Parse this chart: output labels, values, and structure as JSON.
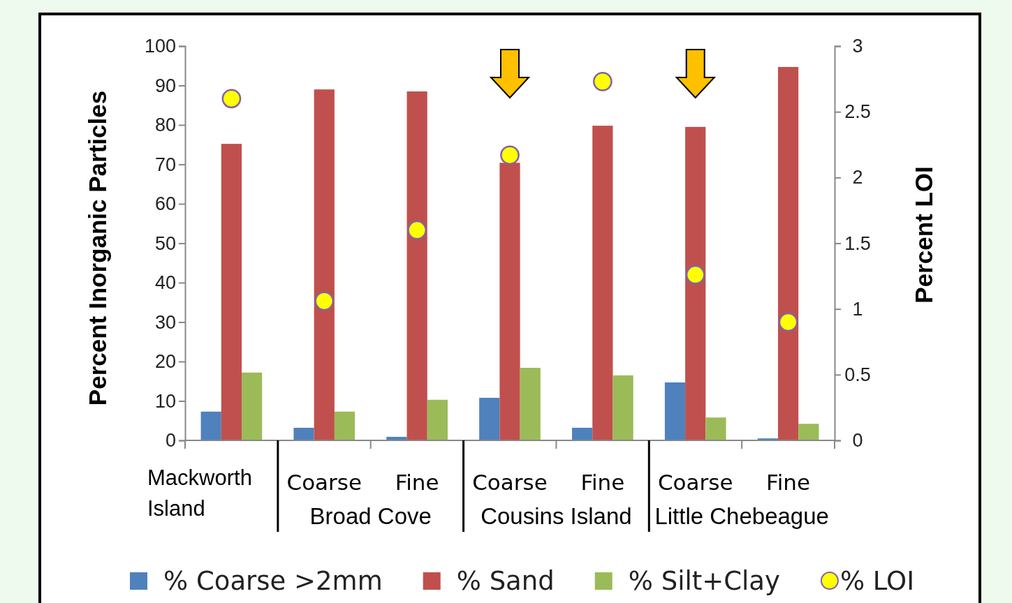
{
  "chart_data": {
    "type": "bar",
    "ylabel": "Percent Inorganic Particles",
    "y2label": "Percent LOI",
    "categories": [
      "Mackworth Island",
      "Coarse",
      "Fine",
      "Coarse",
      "Fine",
      "Coarse",
      "Fine"
    ],
    "series": [
      {
        "name": "% Coarse >2mm",
        "color": "#4f81bd",
        "values": [
          7.3,
          3.2,
          0.9,
          10.8,
          3.2,
          14.7,
          0.5
        ]
      },
      {
        "name": "% Sand",
        "color": "#c0504d",
        "values": [
          75.2,
          89,
          88.5,
          70.4,
          79.8,
          79.5,
          94.7
        ]
      },
      {
        "name": "% Silt+Clay",
        "color": "#9bbb59",
        "values": [
          17.2,
          7.3,
          10.3,
          18.4,
          16.5,
          5.8,
          4.2
        ]
      },
      {
        "name": "% LOI",
        "type": "scatter",
        "axis": "y2",
        "color": "#ffff00",
        "marker": "circle",
        "values": [
          2.6,
          1.06,
          1.6,
          2.17,
          2.73,
          1.26,
          0.9
        ]
      }
    ],
    "annotations": [
      "Broad Cove",
      "Cousins Island",
      "Little Chebeague"
    ],
    "ylim": [
      0,
      100
    ],
    "yticks": [
      0,
      10,
      20,
      30,
      40,
      50,
      60,
      70,
      80,
      90,
      100
    ],
    "y2lim": [
      0,
      3
    ],
    "y2ticks": [
      0,
      0.5,
      1,
      1.5,
      2,
      2.5,
      3
    ],
    "grid": false,
    "legend": "bottom"
  }
}
